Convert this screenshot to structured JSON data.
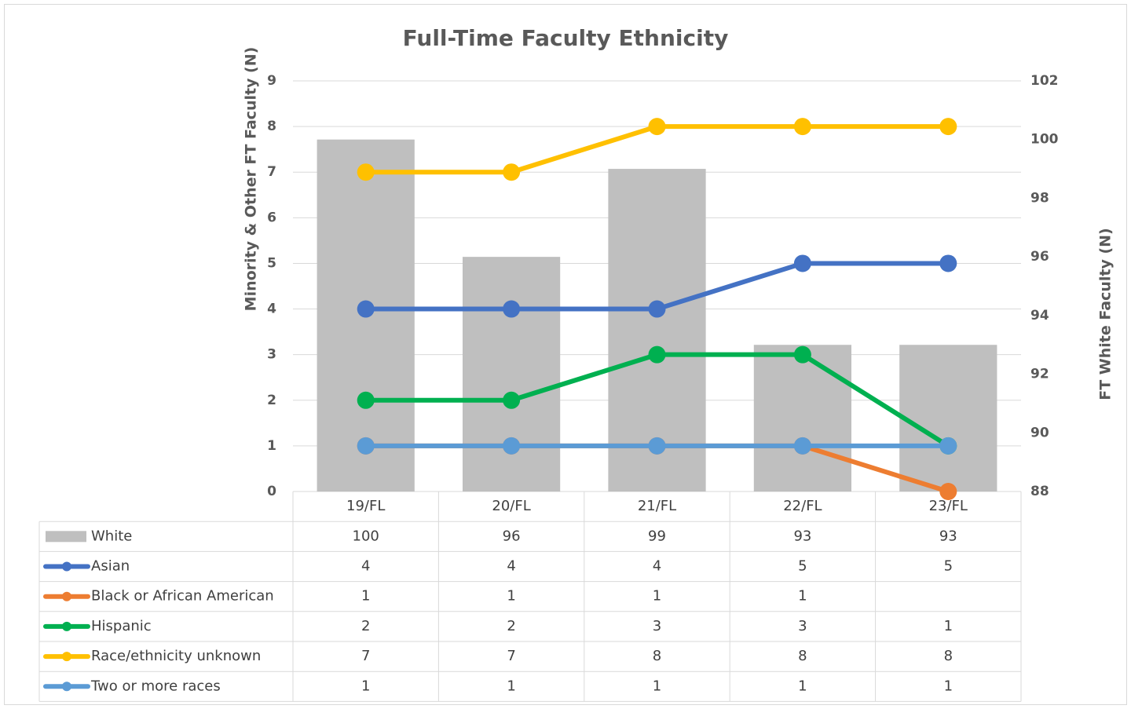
{
  "chart_data": {
    "type": "combo",
    "title": "Full-Time Faculty Ethnicity",
    "y_label": "Minority & Other FT Faculty (N)",
    "y2_label": "FT White Faculty (N)",
    "categories": [
      "19/FL",
      "20/FL",
      "21/FL",
      "22/FL",
      "23/FL"
    ],
    "ylim": [
      0,
      9
    ],
    "yticks": [
      0,
      1,
      2,
      3,
      4,
      5,
      6,
      7,
      8,
      9
    ],
    "y2lim": [
      88,
      102
    ],
    "y2ticks": [
      88,
      90,
      92,
      94,
      96,
      98,
      100,
      102
    ],
    "grid": true,
    "data_table": true,
    "series": [
      {
        "name": "White",
        "type": "bar",
        "axis": "y2",
        "color": "#bfbfbf",
        "values": [
          100,
          96,
          99,
          93,
          93
        ]
      },
      {
        "name": "Asian",
        "type": "line",
        "color": "#4472c4",
        "values": [
          4,
          4,
          4,
          5,
          5
        ]
      },
      {
        "name": "Black or African American",
        "type": "line",
        "color": "#ed7d31",
        "values": [
          1,
          1,
          1,
          1,
          0
        ],
        "value_labels": [
          "1",
          "1",
          "1",
          "1",
          null
        ]
      },
      {
        "name": "Hispanic",
        "type": "line",
        "color": "#00b050",
        "values": [
          2,
          2,
          3,
          3,
          1
        ]
      },
      {
        "name": "Race/ethnicity unknown",
        "type": "line",
        "color": "#ffc000",
        "values": [
          7,
          7,
          8,
          8,
          8
        ]
      },
      {
        "name": "Two or more races",
        "type": "line",
        "color": "#5b9bd5",
        "values": [
          1,
          1,
          1,
          1,
          1
        ]
      }
    ]
  }
}
